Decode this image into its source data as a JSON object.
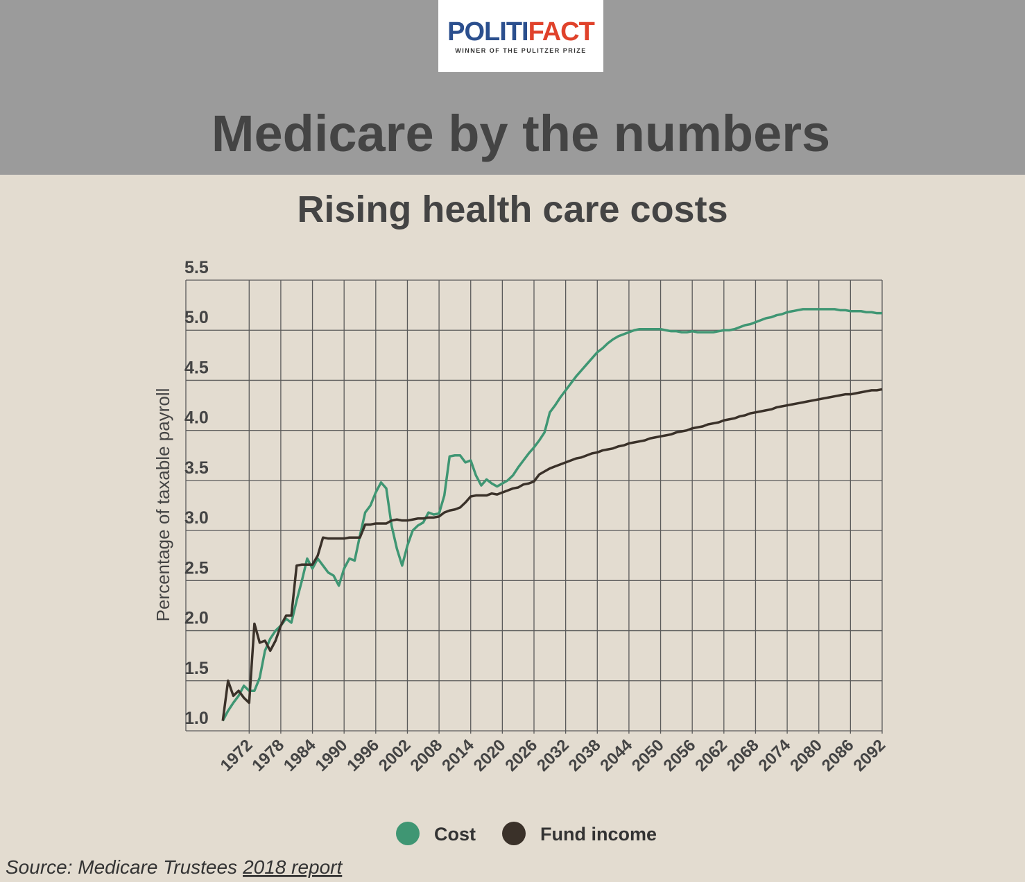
{
  "header": {
    "logo": [
      "POLITI",
      "FACT"
    ],
    "logo_tagline": "WINNER OF THE PULITZER PRIZE",
    "title": "Medicare by the numbers"
  },
  "chart_data": {
    "type": "line",
    "title": "Rising health care costs",
    "y_label": "Percentage of taxable payroll",
    "x": [
      1967,
      1968,
      1969,
      1970,
      1971,
      1972,
      1973,
      1974,
      1975,
      1976,
      1977,
      1978,
      1979,
      1980,
      1981,
      1982,
      1983,
      1984,
      1985,
      1986,
      1987,
      1988,
      1989,
      1990,
      1991,
      1992,
      1993,
      1994,
      1995,
      1996,
      1997,
      1998,
      1999,
      2000,
      2001,
      2002,
      2003,
      2004,
      2005,
      2006,
      2007,
      2008,
      2009,
      2010,
      2011,
      2012,
      2013,
      2014,
      2015,
      2016,
      2017,
      2018,
      2019,
      2020,
      2021,
      2022,
      2023,
      2024,
      2025,
      2026,
      2027,
      2028,
      2029,
      2030,
      2031,
      2032,
      2033,
      2034,
      2035,
      2036,
      2037,
      2038,
      2039,
      2040,
      2041,
      2042,
      2043,
      2044,
      2045,
      2046,
      2047,
      2048,
      2049,
      2050,
      2051,
      2052,
      2053,
      2054,
      2055,
      2056,
      2057,
      2058,
      2059,
      2060,
      2061,
      2062,
      2063,
      2064,
      2065,
      2066,
      2067,
      2068,
      2069,
      2070,
      2071,
      2072,
      2073,
      2074,
      2075,
      2076,
      2077,
      2078,
      2079,
      2080,
      2081,
      2082,
      2083,
      2084,
      2085,
      2086,
      2087,
      2088,
      2089,
      2090,
      2091,
      2092
    ],
    "series": [
      {
        "name": "Cost",
        "color": "#3f9673",
        "values": [
          1.1,
          1.2,
          1.28,
          1.35,
          1.45,
          1.4,
          1.4,
          1.53,
          1.8,
          1.92,
          2.0,
          2.05,
          2.12,
          2.08,
          2.3,
          2.5,
          2.72,
          2.62,
          2.72,
          2.65,
          2.58,
          2.55,
          2.45,
          2.62,
          2.72,
          2.7,
          2.95,
          3.18,
          3.25,
          3.38,
          3.48,
          3.42,
          3.05,
          2.82,
          2.65,
          2.85,
          3.0,
          3.05,
          3.08,
          3.18,
          3.16,
          3.17,
          3.35,
          3.74,
          3.75,
          3.75,
          3.68,
          3.7,
          3.55,
          3.45,
          3.51,
          3.47,
          3.44,
          3.47,
          3.5,
          3.55,
          3.63,
          3.7,
          3.77,
          3.83,
          3.9,
          3.98,
          4.18,
          4.25,
          4.33,
          4.4,
          4.47,
          4.54,
          4.6,
          4.66,
          4.72,
          4.78,
          4.82,
          4.87,
          4.91,
          4.94,
          4.96,
          4.98,
          5.0,
          5.01,
          5.01,
          5.01,
          5.01,
          5.01,
          5.0,
          4.99,
          4.99,
          4.98,
          4.98,
          4.99,
          4.98,
          4.98,
          4.98,
          4.98,
          4.99,
          5.0,
          5.0,
          5.01,
          5.03,
          5.05,
          5.06,
          5.08,
          5.1,
          5.12,
          5.13,
          5.15,
          5.16,
          5.18,
          5.19,
          5.2,
          5.21,
          5.21,
          5.21,
          5.21,
          5.21,
          5.21,
          5.21,
          5.2,
          5.2,
          5.19,
          5.19,
          5.19,
          5.18,
          5.18,
          5.17,
          5.17
        ]
      },
      {
        "name": "Fund income",
        "color": "#3a3129",
        "values": [
          1.1,
          1.5,
          1.35,
          1.4,
          1.33,
          1.28,
          2.07,
          1.88,
          1.9,
          1.8,
          1.9,
          2.05,
          2.15,
          2.15,
          2.65,
          2.66,
          2.66,
          2.66,
          2.75,
          2.93,
          2.92,
          2.92,
          2.92,
          2.92,
          2.93,
          2.93,
          2.93,
          3.06,
          3.06,
          3.07,
          3.07,
          3.07,
          3.1,
          3.11,
          3.1,
          3.1,
          3.11,
          3.12,
          3.12,
          3.13,
          3.13,
          3.14,
          3.18,
          3.2,
          3.21,
          3.23,
          3.28,
          3.34,
          3.35,
          3.35,
          3.35,
          3.37,
          3.36,
          3.38,
          3.4,
          3.42,
          3.43,
          3.46,
          3.47,
          3.49,
          3.56,
          3.59,
          3.62,
          3.64,
          3.66,
          3.68,
          3.7,
          3.72,
          3.73,
          3.75,
          3.77,
          3.78,
          3.8,
          3.81,
          3.82,
          3.84,
          3.85,
          3.87,
          3.88,
          3.89,
          3.9,
          3.92,
          3.93,
          3.94,
          3.95,
          3.96,
          3.98,
          3.99,
          4.0,
          4.02,
          4.03,
          4.04,
          4.06,
          4.07,
          4.08,
          4.1,
          4.11,
          4.12,
          4.14,
          4.15,
          4.17,
          4.18,
          4.19,
          4.2,
          4.21,
          4.23,
          4.24,
          4.25,
          4.26,
          4.27,
          4.28,
          4.29,
          4.3,
          4.31,
          4.32,
          4.33,
          4.34,
          4.35,
          4.36,
          4.36,
          4.37,
          4.38,
          4.39,
          4.4,
          4.4,
          4.41
        ]
      }
    ],
    "xlim": [
      1960,
      2092
    ],
    "xticks": [
      1972,
      1978,
      1984,
      1990,
      1996,
      2002,
      2008,
      2014,
      2020,
      2026,
      2032,
      2038,
      2044,
      2050,
      2056,
      2062,
      2068,
      2074,
      2080,
      2086,
      2092
    ],
    "ylim": [
      1,
      5.5
    ],
    "yticks": [
      {
        "value": 1,
        "label": "1.0"
      },
      {
        "value": 1.5,
        "label": "1.5"
      },
      {
        "value": 2,
        "label": "2.0"
      },
      {
        "value": 2.5,
        "label": "2.5"
      },
      {
        "value": 3,
        "label": "3.0"
      },
      {
        "value": 3.5,
        "label": "3.5"
      },
      {
        "value": 4,
        "label": "4.0"
      },
      {
        "value": 4.5,
        "label": "4.5"
      },
      {
        "value": 5,
        "label": "5.0"
      },
      {
        "value": 5.5,
        "label": "5.5"
      }
    ],
    "grid": true,
    "legend": "bottom"
  },
  "footer": {
    "source": "Source: Medicare Trustees",
    "link": "2018 report"
  }
}
